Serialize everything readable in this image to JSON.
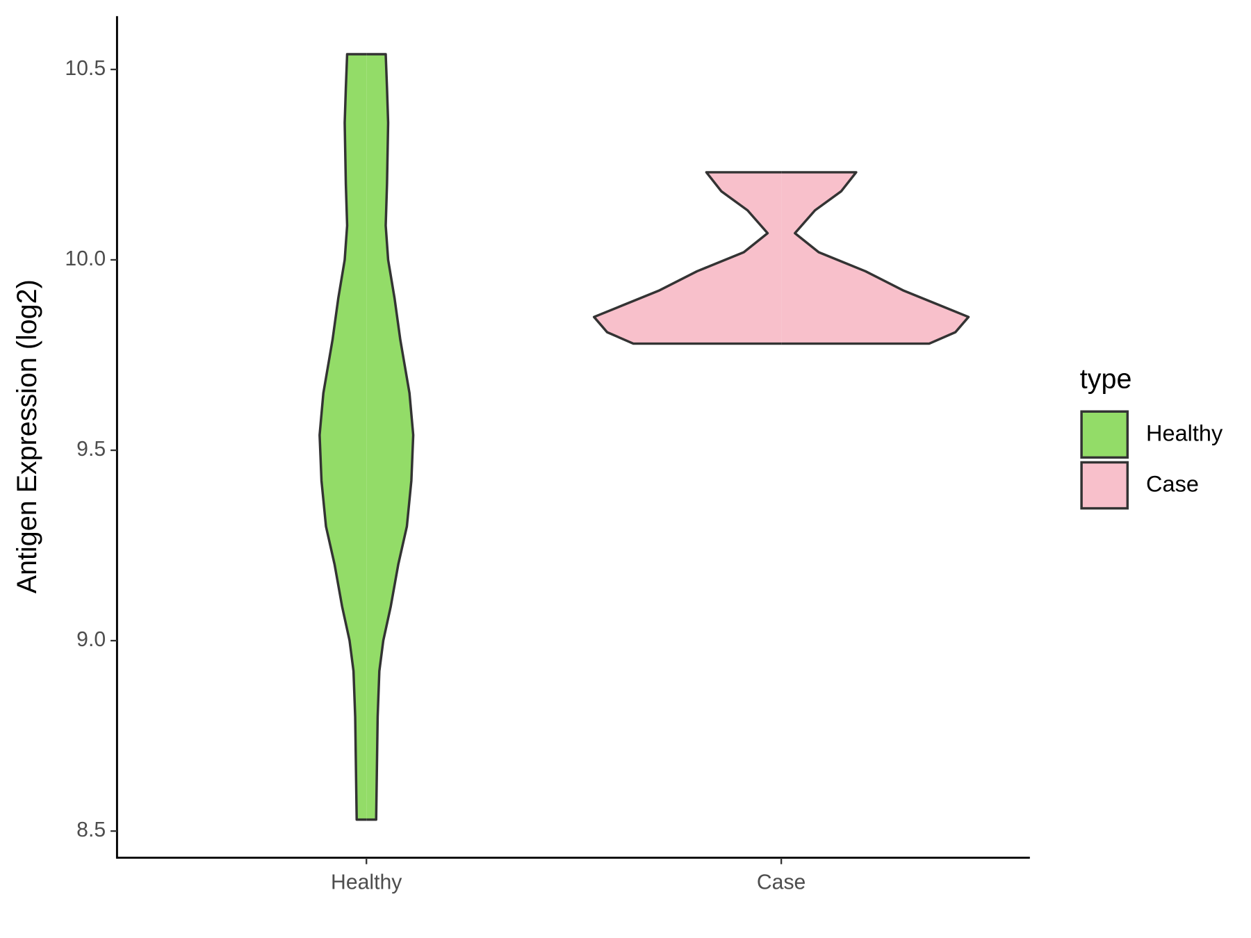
{
  "chart_data": {
    "type": "violin",
    "y_label": "Antigen Expression (log2)",
    "categories": [
      "Healthy",
      "Case"
    ],
    "ylim": [
      8.43,
      10.64
    ],
    "yticks": [
      {
        "value": 8.5,
        "label": "8.5"
      },
      {
        "value": 9.0,
        "label": "9.0"
      },
      {
        "value": 9.5,
        "label": "9.5"
      },
      {
        "value": 10.0,
        "label": "10.0"
      },
      {
        "value": 10.5,
        "label": "10.5"
      }
    ],
    "legend_title": "type",
    "legend_position": "right",
    "series": [
      {
        "name": "Healthy",
        "color": "#93dc68",
        "values": [
          10.54,
          10.45,
          10.36,
          10.2,
          10.09,
          10.0,
          9.9,
          9.79,
          9.65,
          9.54,
          9.42,
          9.3,
          9.2,
          9.09,
          9.0,
          8.92,
          8.8,
          8.53
        ],
        "density": [
          0.103,
          0.11,
          0.116,
          0.11,
          0.103,
          0.116,
          0.15,
          0.181,
          0.23,
          0.25,
          0.24,
          0.216,
          0.17,
          0.13,
          0.09,
          0.069,
          0.06,
          0.052
        ]
      },
      {
        "name": "Case",
        "color": "#f8c0cb",
        "values": [
          10.23,
          10.18,
          10.13,
          10.07,
          10.02,
          9.97,
          9.92,
          9.88,
          9.85,
          9.81,
          9.78
        ],
        "density": [
          0.4,
          0.32,
          0.18,
          0.073,
          0.2,
          0.45,
          0.65,
          0.85,
          1.0,
          0.93,
          0.79
        ]
      }
    ]
  }
}
